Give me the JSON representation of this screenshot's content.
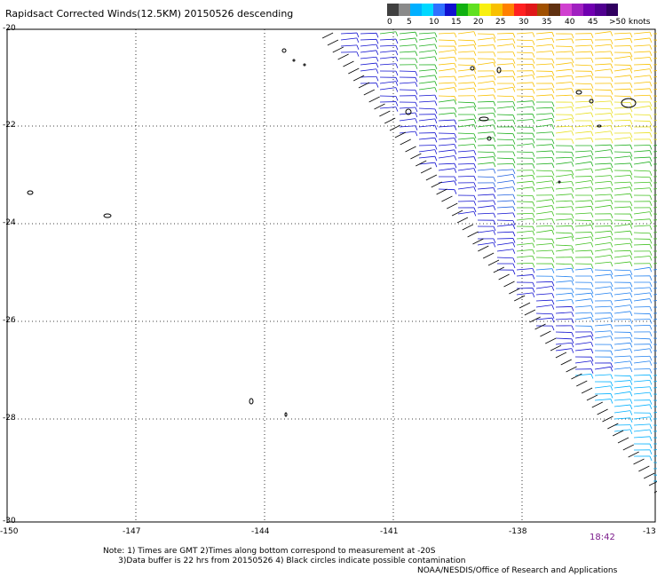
{
  "title": "Rapidsact Corrected Winds(12.5KM) 20150526 descending",
  "legend": {
    "colors": [
      "#404040",
      "#8a8a8a",
      "#00b0ff",
      "#00d8ff",
      "#3070ff",
      "#1010d0",
      "#10b010",
      "#60e020",
      "#f8f010",
      "#f8c000",
      "#ff8000",
      "#ff2020",
      "#e01818",
      "#a05000",
      "#603010",
      "#d040d0",
      "#a020c0",
      "#7000b0",
      "#500090",
      "#300060"
    ],
    "labels": [
      "0",
      "5",
      "10",
      "15",
      "20",
      "25",
      "30",
      "35",
      "40",
      "45",
      ">50 knots"
    ],
    "unit": "knots"
  },
  "axes": {
    "lat_labels": [
      "-20",
      "-22",
      "-24",
      "-26",
      "-28",
      "-30"
    ],
    "lon_labels": [
      "-150",
      "-147",
      "-144",
      "-141",
      "-138",
      "-13"
    ]
  },
  "timestamp": "18:42",
  "notes": "Note: 1) Times are GMT 2)Times along bottom correspond to measurement at -20S\n      3)Data buffer is 22 hrs from 20150526 4) Black circles indicate possible contamination",
  "credit": "NOAA/NESDIS/Office of Research and Applications"
}
